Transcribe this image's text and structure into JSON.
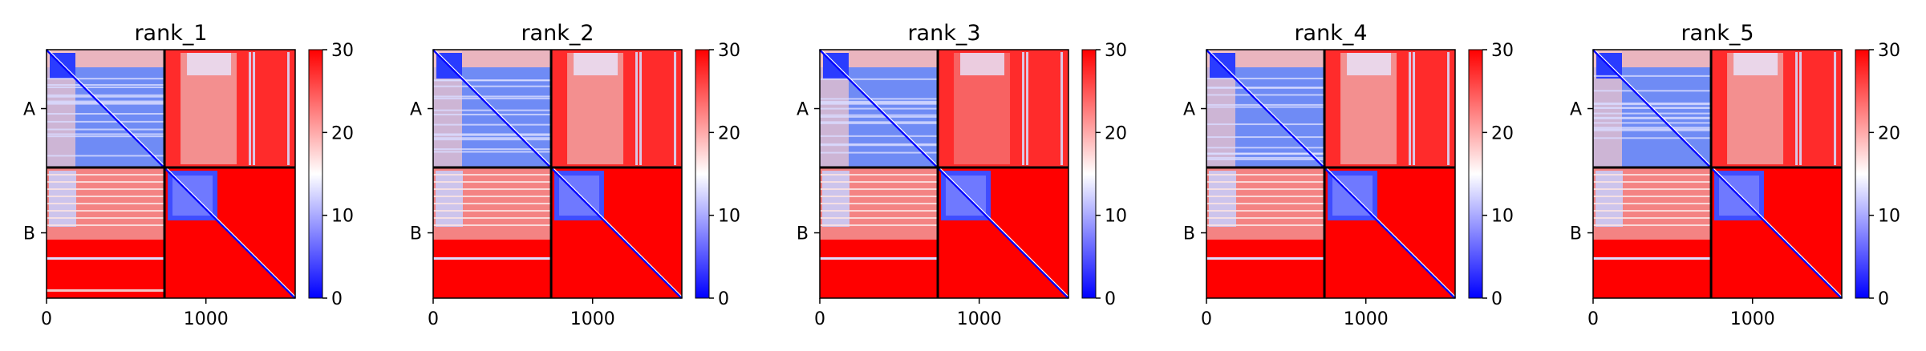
{
  "chart_data": {
    "type": "heatmap",
    "colormap": [
      "#0000ff",
      "#ffffff",
      "#ff0000"
    ],
    "colorbar_ticks": [
      "0",
      "10",
      "20",
      "30"
    ],
    "colorbar_range": [
      0,
      30
    ],
    "x_ticks": [
      "0",
      "1000"
    ],
    "y_ticks": [
      "A",
      "B"
    ],
    "x_range": [
      0,
      1560
    ],
    "chain_boundary": 740,
    "panels": [
      {
        "title": "rank_1"
      },
      {
        "title": "rank_2"
      },
      {
        "title": "rank_3"
      },
      {
        "title": "rank_4"
      },
      {
        "title": "rank_5"
      }
    ]
  }
}
